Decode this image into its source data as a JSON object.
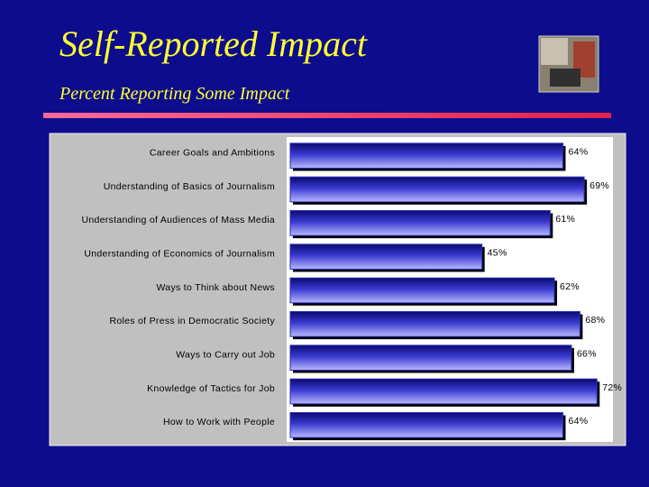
{
  "chart_data": {
    "type": "bar",
    "orientation": "horizontal",
    "title": "Self-Reported Impact",
    "subtitle": "Percent Reporting Some Impact",
    "categories": [
      "Career Goals and Ambitions",
      "Understanding of Basics of Journalism",
      "Understanding of Audiences of Mass Media",
      "Understanding of Economics of Journalism",
      "Ways to Think about News",
      "Roles of Press in Democratic Society",
      "Ways to Carry out Job",
      "Knowledge of Tactics for Job",
      "How to Work with People"
    ],
    "values": [
      64,
      69,
      61,
      45,
      62,
      68,
      66,
      72,
      64
    ],
    "value_labels": [
      "64%",
      "69%",
      "61%",
      "45%",
      "62%",
      "68%",
      "66%",
      "72%",
      "64%"
    ],
    "color": "#2b2bb8"
  }
}
